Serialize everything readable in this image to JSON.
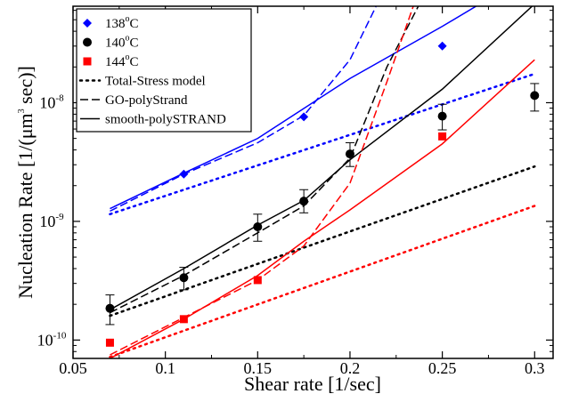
{
  "chart_data": {
    "type": "line",
    "xlabel": "Shear rate [1/sec]",
    "ylabel": {
      "main": "Nucleation Rate [1/(μm",
      "sup": "3",
      "tail": " sec)]"
    },
    "xlim": [
      0.05,
      0.31
    ],
    "ylim": [
      7e-11,
      6.5e-08
    ],
    "yscale": "log",
    "grid": false,
    "legend_position": "top-left",
    "x_ticks": [
      0.05,
      0.1,
      0.15,
      0.2,
      0.25,
      0.3
    ],
    "x_tick_labels": [
      "0.05",
      "0.1",
      "0.15",
      "0.2",
      "0.25",
      "0.3"
    ],
    "y_ticks": [
      {
        "value": 1e-10,
        "mantissa": "10",
        "exp": "-10"
      },
      {
        "value": 1e-09,
        "mantissa": "10",
        "exp": "-9"
      },
      {
        "value": 1e-08,
        "mantissa": "10",
        "exp": "-8"
      }
    ],
    "temperatures": [
      {
        "label": {
          "base": "138",
          "sup": "o",
          "unit": "C"
        },
        "color": "#0000ff",
        "marker": "diamond",
        "points": [
          {
            "x": 0.11,
            "y": 2.5e-09
          },
          {
            "x": 0.175,
            "y": 7.6e-09
          },
          {
            "x": 0.25,
            "y": 3e-08
          }
        ],
        "total_stress": [
          [
            0.07,
            1.15e-09
          ],
          [
            0.3,
            1.75e-08
          ]
        ],
        "go_polystrand": [
          [
            0.07,
            1.22e-09
          ],
          [
            0.11,
            2.5e-09
          ],
          [
            0.15,
            4.6e-09
          ],
          [
            0.175,
            7.8e-09
          ],
          [
            0.2,
            2.3e-08
          ],
          [
            0.22,
            1e-07
          ]
        ],
        "smooth_polystrand": [
          [
            0.07,
            1.28e-09
          ],
          [
            0.11,
            2.55e-09
          ],
          [
            0.15,
            5e-09
          ],
          [
            0.2,
            1.6e-08
          ],
          [
            0.25,
            4.4e-08
          ],
          [
            0.275,
            7.5e-08
          ]
        ]
      },
      {
        "label": {
          "base": "140",
          "sup": "o",
          "unit": "C"
        },
        "color": "#000000",
        "marker": "circle",
        "points": [
          {
            "x": 0.07,
            "y": 1.85e-10,
            "ylo": 1.35e-10,
            "yhi": 2.4e-10
          },
          {
            "x": 0.11,
            "y": 3.35e-10,
            "ylo": 2.65e-10,
            "yhi": 4.1e-10
          },
          {
            "x": 0.15,
            "y": 9e-10,
            "ylo": 6.8e-10,
            "yhi": 1.15e-09
          },
          {
            "x": 0.175,
            "y": 1.48e-09,
            "ylo": 1.18e-09,
            "yhi": 1.85e-09
          },
          {
            "x": 0.2,
            "y": 3.7e-09,
            "ylo": 2.9e-09,
            "yhi": 4.6e-09
          },
          {
            "x": 0.25,
            "y": 7.7e-09,
            "ylo": 5.9e-09,
            "yhi": 9.7e-09
          },
          {
            "x": 0.3,
            "y": 1.15e-08,
            "ylo": 8.5e-09,
            "yhi": 1.45e-08
          }
        ],
        "total_stress": [
          [
            0.07,
            1.6e-10
          ],
          [
            0.3,
            2.9e-09
          ]
        ],
        "go_polystrand": [
          [
            0.07,
            1.7e-10
          ],
          [
            0.11,
            3.5e-10
          ],
          [
            0.15,
            8e-10
          ],
          [
            0.175,
            1.35e-09
          ],
          [
            0.2,
            3.4e-09
          ],
          [
            0.22,
            2e-08
          ],
          [
            0.24,
            8e-08
          ]
        ],
        "smooth_polystrand": [
          [
            0.07,
            1.8e-10
          ],
          [
            0.11,
            4e-10
          ],
          [
            0.15,
            9.3e-10
          ],
          [
            0.175,
            1.5e-09
          ],
          [
            0.2,
            3.3e-09
          ],
          [
            0.25,
            1.3e-08
          ],
          [
            0.3,
            6.8e-08
          ]
        ]
      },
      {
        "label": {
          "base": "144",
          "sup": "o",
          "unit": "C"
        },
        "color": "#ff0000",
        "marker": "square",
        "points": [
          {
            "x": 0.07,
            "y": 9.5e-11
          },
          {
            "x": 0.11,
            "y": 1.5e-10
          },
          {
            "x": 0.15,
            "y": 3.2e-10
          },
          {
            "x": 0.25,
            "y": 5.2e-09
          }
        ],
        "total_stress": [
          [
            0.07,
            7.2e-11
          ],
          [
            0.3,
            1.35e-09
          ]
        ],
        "go_polystrand": [
          [
            0.07,
            7.5e-11
          ],
          [
            0.11,
            1.55e-10
          ],
          [
            0.15,
            3.2e-10
          ],
          [
            0.175,
            6.2e-10
          ],
          [
            0.2,
            2.1e-09
          ],
          [
            0.22,
            1.5e-08
          ],
          [
            0.235,
            7e-08
          ]
        ],
        "smooth_polystrand": [
          [
            0.07,
            7e-11
          ],
          [
            0.11,
            1.5e-10
          ],
          [
            0.15,
            3.5e-10
          ],
          [
            0.175,
            6.8e-10
          ],
          [
            0.2,
            1.25e-09
          ],
          [
            0.25,
            4.5e-09
          ],
          [
            0.3,
            2.3e-08
          ]
        ]
      }
    ],
    "legend": [
      {
        "kind": "marker",
        "marker": "diamond",
        "color": "#0000ff",
        "label": {
          "base": "138",
          "sup": "o",
          "unit": "C"
        }
      },
      {
        "kind": "marker",
        "marker": "circle",
        "color": "#000000",
        "label": {
          "base": "140",
          "sup": "o",
          "unit": "C"
        }
      },
      {
        "kind": "marker",
        "marker": "square",
        "color": "#ff0000",
        "label": {
          "base": "144",
          "sup": "o",
          "unit": "C"
        }
      },
      {
        "kind": "line",
        "style": "dotted",
        "color": "#000000",
        "label": {
          "base": "Total-Stress model",
          "sup": "",
          "unit": ""
        }
      },
      {
        "kind": "line",
        "style": "dashed",
        "color": "#000000",
        "label": {
          "base": "GO-polyStrand",
          "sup": "",
          "unit": ""
        }
      },
      {
        "kind": "line",
        "style": "solid",
        "color": "#000000",
        "label": {
          "base": "smooth-polySTRAND",
          "sup": "",
          "unit": ""
        }
      }
    ]
  }
}
